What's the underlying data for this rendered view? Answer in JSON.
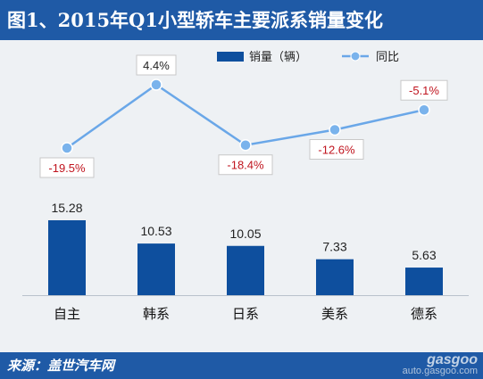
{
  "header": {
    "title": "图1、2015年Q1小型轿车主要派系销量变化"
  },
  "footer": {
    "source": "来源：盖世汽车网",
    "watermark_logo": "gasgoo",
    "watermark_url": "auto.gasgoo.com"
  },
  "chart_data": {
    "type": "bar",
    "categories": [
      "自主",
      "韩系",
      "日系",
      "美系",
      "德系"
    ],
    "series": [
      {
        "name": "销量（辆）",
        "type": "bar",
        "values": [
          15.28,
          10.53,
          10.05,
          7.33,
          5.63
        ],
        "labels": [
          "15.28",
          "10.53",
          "10.05",
          "7.33",
          "5.63"
        ],
        "color": "#0e4f9e"
      },
      {
        "name": "同比",
        "type": "line",
        "values": [
          -19.5,
          4.4,
          -18.4,
          -12.6,
          -5.1
        ],
        "labels": [
          "-19.5%",
          "4.4%",
          "-18.4%",
          "-12.6%",
          "-5.1%"
        ],
        "color": "#6aa7e8"
      }
    ],
    "legend_position": "top-right",
    "grid": false,
    "colors": {
      "negative_label": "#c0141e",
      "positive_label": "#222222",
      "line_marker": "#7ab3ec"
    }
  }
}
